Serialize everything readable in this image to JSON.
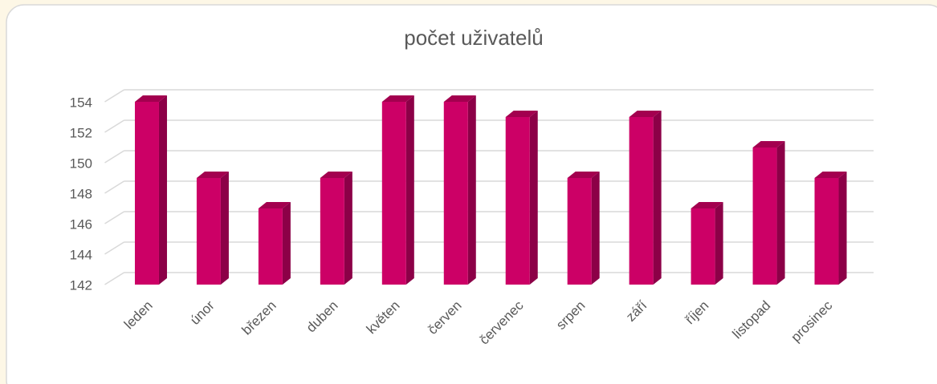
{
  "chart_data": {
    "type": "bar3d",
    "title": "počet uživatelů",
    "categories": [
      "leden",
      "únor",
      "březen",
      "duben",
      "květen",
      "červen",
      "červenec",
      "srpen",
      "září",
      "říjen",
      "listopad",
      "prosinec"
    ],
    "values": [
      154,
      149,
      147,
      149,
      154,
      154,
      153,
      149,
      153,
      147,
      151,
      149
    ],
    "color": "#cc0066",
    "ylim": [
      142,
      154
    ],
    "yticks": [
      142,
      144,
      146,
      148,
      150,
      152,
      154
    ],
    "grid": true
  }
}
